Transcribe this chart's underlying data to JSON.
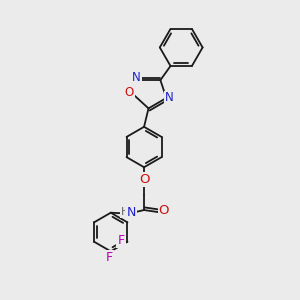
{
  "bg_color": "#ebebeb",
  "bond_color": "#1a1a1a",
  "bond_width": 1.3,
  "atom_colors": {
    "N": "#2020cc",
    "O": "#cc1010",
    "F": "#bb00bb",
    "H": "#606060",
    "C": "#1a1a1a"
  },
  "font_size": 8.5
}
